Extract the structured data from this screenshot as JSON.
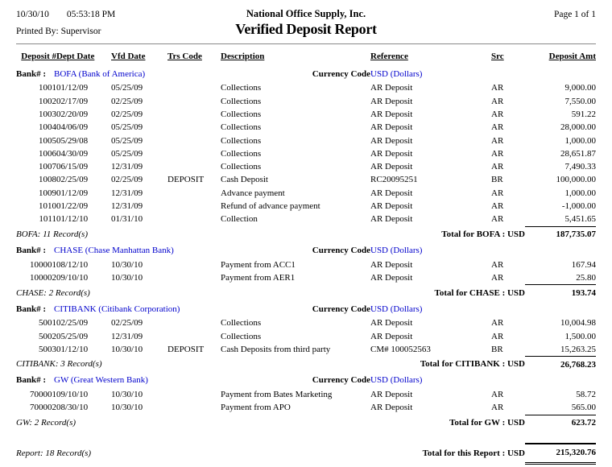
{
  "header": {
    "date": "10/30/10",
    "time": "05:53:18 PM",
    "printed_by": "Printed By: Supervisor",
    "company": "National Office Supply, Inc.",
    "title": "Verified Deposit Report",
    "page": "Page 1 of 1"
  },
  "columns": [
    "Deposit #",
    "Dept Date",
    "Vfd Date",
    "Trs Code",
    "Description",
    "Reference",
    "Src",
    "Deposit Amt"
  ],
  "labels": {
    "bank_prefix": "Bank# :",
    "currency_code": "Currency Code"
  },
  "colors": {
    "link_blue": "#0000CC",
    "rule_gray": "#8a8a8a"
  },
  "banks": [
    {
      "code": "BOFA",
      "name": "BOFA (Bank of America)",
      "currency": "USD (Dollars)",
      "rows": [
        {
          "deposit": "1001",
          "dept_date": "01/12/09",
          "vfd_date": "05/25/09",
          "trs_code": "",
          "description": "Collections",
          "reference": "AR Deposit",
          "src": "AR",
          "amount": "9,000.00"
        },
        {
          "deposit": "1002",
          "dept_date": "02/17/09",
          "vfd_date": "02/25/09",
          "trs_code": "",
          "description": "Collections",
          "reference": "AR Deposit",
          "src": "AR",
          "amount": "7,550.00"
        },
        {
          "deposit": "1003",
          "dept_date": "02/20/09",
          "vfd_date": "02/25/09",
          "trs_code": "",
          "description": "Collections",
          "reference": "AR Deposit",
          "src": "AR",
          "amount": "591.22"
        },
        {
          "deposit": "1004",
          "dept_date": "04/06/09",
          "vfd_date": "05/25/09",
          "trs_code": "",
          "description": "Collections",
          "reference": "AR Deposit",
          "src": "AR",
          "amount": "28,000.00"
        },
        {
          "deposit": "1005",
          "dept_date": "05/29/08",
          "vfd_date": "05/25/09",
          "trs_code": "",
          "description": "Collections",
          "reference": "AR Deposit",
          "src": "AR",
          "amount": "1,000.00"
        },
        {
          "deposit": "1006",
          "dept_date": "04/30/09",
          "vfd_date": "05/25/09",
          "trs_code": "",
          "description": "Collections",
          "reference": "AR Deposit",
          "src": "AR",
          "amount": "28,651.87"
        },
        {
          "deposit": "1007",
          "dept_date": "06/15/09",
          "vfd_date": "12/31/09",
          "trs_code": "",
          "description": "Collections",
          "reference": "AR Deposit",
          "src": "AR",
          "amount": "7,490.33"
        },
        {
          "deposit": "1008",
          "dept_date": "02/25/09",
          "vfd_date": "02/25/09",
          "trs_code": "DEPOSIT",
          "description": "Cash Deposit",
          "reference": "RC20095251",
          "src": "BR",
          "amount": "100,000.00"
        },
        {
          "deposit": "1009",
          "dept_date": "01/12/09",
          "vfd_date": "12/31/09",
          "trs_code": "",
          "description": "Advance payment",
          "reference": "AR Deposit",
          "src": "AR",
          "amount": "1,000.00"
        },
        {
          "deposit": "1010",
          "dept_date": "01/22/09",
          "vfd_date": "12/31/09",
          "trs_code": "",
          "description": "Refund of advance payment",
          "reference": "AR Deposit",
          "src": "AR",
          "amount": "-1,000.00"
        },
        {
          "deposit": "1011",
          "dept_date": "01/12/10",
          "vfd_date": "01/31/10",
          "trs_code": "",
          "description": "Collection",
          "reference": "AR Deposit",
          "src": "AR",
          "amount": "5,451.65"
        }
      ],
      "record_note": "BOFA: 11 Record(s)",
      "total_label": "Total for BOFA : USD",
      "total": "187,735.07"
    },
    {
      "code": "CHASE",
      "name": "CHASE (Chase Manhattan Bank)",
      "currency": "USD (Dollars)",
      "rows": [
        {
          "deposit": "100001",
          "dept_date": "08/12/10",
          "vfd_date": "10/30/10",
          "trs_code": "",
          "description": "Payment from ACC1",
          "reference": "AR Deposit",
          "src": "AR",
          "amount": "167.94"
        },
        {
          "deposit": "100002",
          "dept_date": "09/10/10",
          "vfd_date": "10/30/10",
          "trs_code": "",
          "description": "Payment from AER1",
          "reference": "AR Deposit",
          "src": "AR",
          "amount": "25.80"
        }
      ],
      "record_note": "CHASE: 2 Record(s)",
      "total_label": "Total for CHASE : USD",
      "total": "193.74"
    },
    {
      "code": "CITIBANK",
      "name": "CITIBANK (Citibank Corporation)",
      "currency": "USD (Dollars)",
      "rows": [
        {
          "deposit": "5001",
          "dept_date": "02/25/09",
          "vfd_date": "02/25/09",
          "trs_code": "",
          "description": "Collections",
          "reference": "AR Deposit",
          "src": "AR",
          "amount": "10,004.98"
        },
        {
          "deposit": "5002",
          "dept_date": "05/25/09",
          "vfd_date": "12/31/09",
          "trs_code": "",
          "description": "Collections",
          "reference": "AR Deposit",
          "src": "AR",
          "amount": "1,500.00"
        },
        {
          "deposit": "5003",
          "dept_date": "01/12/10",
          "vfd_date": "10/30/10",
          "trs_code": "DEPOSIT",
          "description": "Cash Deposits from third party",
          "reference": "CM# 100052563",
          "src": "BR",
          "amount": "15,263.25"
        }
      ],
      "record_note": "CITIBANK: 3 Record(s)",
      "total_label": "Total for CITIBANK : USD",
      "total": "26,768.23"
    },
    {
      "code": "GW",
      "name": "GW (Great Western Bank)",
      "currency": "USD (Dollars)",
      "rows": [
        {
          "deposit": "700001",
          "dept_date": "09/10/10",
          "vfd_date": "10/30/10",
          "trs_code": "",
          "description": "Payment from Bates Marketing",
          "reference": "AR Deposit",
          "src": "AR",
          "amount": "58.72"
        },
        {
          "deposit": "700002",
          "dept_date": "08/30/10",
          "vfd_date": "10/30/10",
          "trs_code": "",
          "description": "Payment from APO",
          "reference": "AR Deposit",
          "src": "AR",
          "amount": "565.00"
        }
      ],
      "record_note": "GW: 2 Record(s)",
      "total_label": "Total for GW : USD",
      "total": "623.72"
    }
  ],
  "report": {
    "record_note": "Report: 18 Record(s)",
    "total_label": "Total for this Report : USD",
    "total": "215,320.76"
  }
}
